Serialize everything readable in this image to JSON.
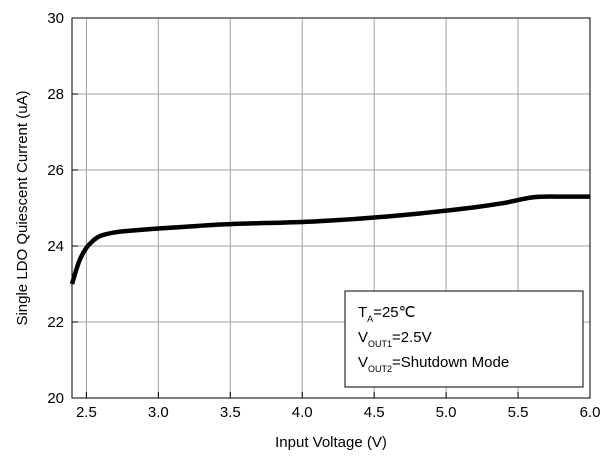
{
  "chart_data": {
    "type": "line",
    "title": "",
    "xlabel": "Input Voltage (V)",
    "ylabel": "Single LDO Quiescent Current (uA)",
    "xlim": [
      2.4,
      6.0
    ],
    "ylim": [
      20,
      30
    ],
    "x_ticks": [
      2.5,
      3.0,
      3.5,
      4.0,
      4.5,
      5.0,
      5.5,
      6.0
    ],
    "x_tick_labels": [
      "2.5",
      "3.0",
      "3.5",
      "4.0",
      "4.5",
      "5.0",
      "5.5",
      "6.0"
    ],
    "y_ticks": [
      20,
      22,
      24,
      26,
      28,
      30
    ],
    "y_tick_labels": [
      "20",
      "22",
      "24",
      "26",
      "28",
      "30"
    ],
    "grid": true,
    "legend_position": "bottom-right",
    "annotation_lines": [
      {
        "main": "T",
        "sub": "A",
        "rest": "=25℃"
      },
      {
        "main": "V",
        "sub": "OUT1",
        "rest": "=2.5V"
      },
      {
        "main": "V",
        "sub": "OUT2",
        "rest": "=Shutdown Mode"
      }
    ],
    "series": [
      {
        "color": "#000000",
        "x": [
          2.4,
          2.45,
          2.5,
          2.55,
          2.6,
          2.7,
          2.8,
          3.0,
          3.2,
          3.4,
          3.6,
          3.8,
          4.0,
          4.2,
          4.4,
          4.6,
          4.8,
          5.0,
          5.2,
          5.4,
          5.5,
          5.6,
          5.7,
          5.8,
          6.0
        ],
        "y": [
          23.0,
          23.6,
          23.95,
          24.15,
          24.27,
          24.36,
          24.4,
          24.46,
          24.51,
          24.56,
          24.59,
          24.61,
          24.63,
          24.67,
          24.72,
          24.78,
          24.85,
          24.93,
          25.02,
          25.13,
          25.21,
          25.28,
          25.3,
          25.3,
          25.3
        ]
      }
    ]
  }
}
